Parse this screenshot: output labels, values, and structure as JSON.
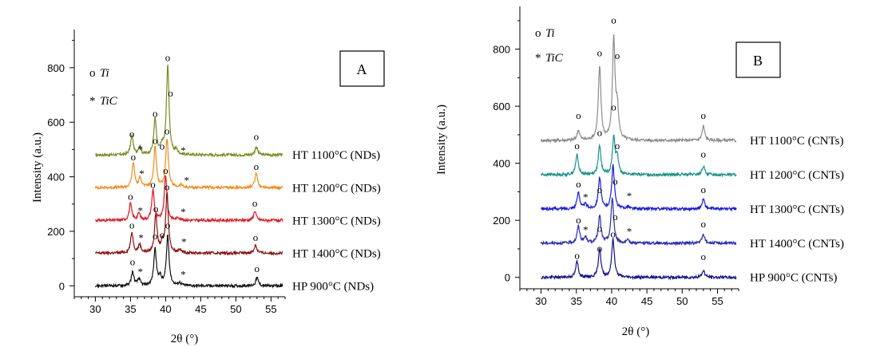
{
  "chart_data": [
    {
      "type": "line",
      "panel_label": "A",
      "xlabel": "2θ (°)",
      "ylabel": "Intensity (a.u.)",
      "xlim": [
        27,
        57
      ],
      "ylim": [
        -40,
        940
      ],
      "xticks": [
        30,
        35,
        40,
        45,
        50,
        55
      ],
      "yticks": [
        0,
        200,
        400,
        600,
        800
      ],
      "legend": [
        {
          "symbol": "o",
          "label": "Ti"
        },
        {
          "symbol": "*",
          "label": "TiC"
        }
      ],
      "series": [
        {
          "name": "HT 1100°C (NDs)",
          "color": "#7a8a1e",
          "baseline": 480,
          "peaks": [
            [
              35.2,
              70
            ],
            [
              36.3,
              30
            ],
            [
              38.5,
              130
            ],
            [
              39.5,
              30
            ],
            [
              40.3,
              330
            ],
            [
              41.5,
              15
            ],
            [
              52.9,
              30
            ]
          ],
          "ti_markers": [
            [
              35.2,
              545
            ],
            [
              38.5,
              620
            ],
            [
              39.5,
              500
            ],
            [
              40.3,
              825
            ],
            [
              40.7,
              695
            ],
            [
              52.9,
              535
            ]
          ],
          "tic_markers": [
            [
              36.4,
              500
            ],
            [
              42.5,
              495
            ]
          ]
        },
        {
          "name": "HT 1200°C (NDs)",
          "color": "#f08c1a",
          "baseline": 360,
          "peaks": [
            [
              35.4,
              90
            ],
            [
              36.4,
              35
            ],
            [
              38.5,
              150
            ],
            [
              40.2,
              180
            ],
            [
              42.2,
              10
            ],
            [
              52.9,
              55
            ]
          ],
          "ti_markers": [
            [
              35.4,
              460
            ],
            [
              38.5,
              520
            ],
            [
              40.2,
              555
            ],
            [
              52.9,
              425
            ]
          ],
          "tic_markers": [
            [
              36.6,
              410
            ],
            [
              43.0,
              385
            ]
          ]
        },
        {
          "name": "HT 1300°C (NDs)",
          "color": "#e4141e",
          "baseline": 240,
          "peaks": [
            [
              35.0,
              60
            ],
            [
              36.2,
              25
            ],
            [
              38.2,
              110
            ],
            [
              40.0,
              165
            ],
            [
              41.8,
              10
            ],
            [
              52.7,
              35
            ]
          ],
          "ti_markers": [
            [
              35.0,
              315
            ],
            [
              38.2,
              360
            ],
            [
              40.0,
              410
            ],
            [
              52.7,
              290
            ]
          ],
          "tic_markers": [
            [
              36.4,
              275
            ],
            [
              42.5,
              270
            ]
          ]
        },
        {
          "name": "HT 1400°C (NDs)",
          "color": "#8a1010",
          "baseline": 120,
          "peaks": [
            [
              35.2,
              75
            ],
            [
              36.3,
              30
            ],
            [
              38.6,
              140
            ],
            [
              39.5,
              30
            ],
            [
              40.2,
              220
            ],
            [
              42.0,
              12
            ],
            [
              52.8,
              30
            ]
          ],
          "ti_markers": [
            [
              35.2,
              210
            ],
            [
              38.6,
              270
            ],
            [
              39.5,
              175
            ],
            [
              40.2,
              350
            ],
            [
              52.8,
              165
            ]
          ],
          "tic_markers": [
            [
              36.5,
              175
            ],
            [
              42.6,
              160
            ]
          ]
        },
        {
          "name": "HP 900°C (NDs)",
          "color": "#111111",
          "baseline": 0,
          "peaks": [
            [
              35.3,
              50
            ],
            [
              36.2,
              25
            ],
            [
              38.5,
              135
            ],
            [
              39.2,
              30
            ],
            [
              40.3,
              185
            ],
            [
              42.0,
              10
            ],
            [
              53.0,
              30
            ]
          ],
          "ti_markers": [
            [
              35.3,
              75
            ],
            [
              38.5,
              170
            ],
            [
              40.3,
              210
            ],
            [
              53.0,
              50
            ]
          ],
          "tic_markers": [
            [
              36.4,
              50
            ],
            [
              42.5,
              40
            ]
          ]
        }
      ]
    },
    {
      "type": "line",
      "panel_label": "B",
      "xlabel": "2θ (°)",
      "ylabel": "Intensity (a.u.)",
      "xlim": [
        27,
        58
      ],
      "ylim": [
        -40,
        950
      ],
      "xticks": [
        30,
        35,
        40,
        45,
        50,
        55
      ],
      "yticks": [
        0,
        200,
        400,
        600,
        800
      ],
      "legend": [
        {
          "symbol": "o",
          "label": "Ti"
        },
        {
          "symbol": "*",
          "label": "TiC"
        }
      ],
      "series": [
        {
          "name": "HT 1100°C (CNTs)",
          "color": "#8c8c8c",
          "baseline": 480,
          "peaks": [
            [
              35.3,
              35
            ],
            [
              38.3,
              255
            ],
            [
              40.3,
              350
            ],
            [
              40.8,
              100
            ],
            [
              53.0,
              50
            ]
          ],
          "ti_markers": [
            [
              35.3,
              555
            ],
            [
              38.3,
              775
            ],
            [
              40.3,
              890
            ],
            [
              40.8,
              765
            ],
            [
              53.0,
              555
            ]
          ],
          "tic_markers": []
        },
        {
          "name": "HT 1200°C (CNTs)",
          "color": "#17928a",
          "baseline": 360,
          "peaks": [
            [
              35.1,
              70
            ],
            [
              38.3,
              100
            ],
            [
              40.3,
              130
            ],
            [
              40.8,
              55
            ],
            [
              53.0,
              30
            ]
          ],
          "ti_markers": [
            [
              35.1,
              450
            ],
            [
              38.3,
              495
            ],
            [
              40.3,
              585
            ],
            [
              40.8,
              450
            ],
            [
              53.0,
              420
            ]
          ],
          "tic_markers": []
        },
        {
          "name": "HT 1300°C (CNTs)",
          "color": "#1a1ae0",
          "baseline": 240,
          "peaks": [
            [
              35.3,
              60
            ],
            [
              36.3,
              15
            ],
            [
              38.3,
              110
            ],
            [
              40.2,
              155
            ],
            [
              42.3,
              8
            ],
            [
              53.0,
              35
            ]
          ],
          "ti_markers": [
            [
              35.3,
              315
            ],
            [
              38.3,
              295
            ],
            [
              40.5,
              325
            ],
            [
              53.0,
              295
            ]
          ],
          "tic_markers": [
            [
              36.3,
              280
            ],
            [
              42.5,
              285
            ]
          ]
        },
        {
          "name": "HT 1400°C (CNTs)",
          "color": "#2a2ab8",
          "baseline": 120,
          "peaks": [
            [
              35.3,
              60
            ],
            [
              36.3,
              20
            ],
            [
              38.3,
              95
            ],
            [
              40.1,
              160
            ],
            [
              42.3,
              8
            ],
            [
              53.0,
              30
            ]
          ],
          "ti_markers": [
            [
              35.3,
              190
            ],
            [
              38.3,
              160
            ],
            [
              40.5,
              200
            ],
            [
              53.0,
              175
            ]
          ],
          "tic_markers": [
            [
              36.3,
              165
            ],
            [
              42.5,
              160
            ]
          ]
        },
        {
          "name": "HP 900°C (CNTs)",
          "color": "#10108a",
          "baseline": 0,
          "peaks": [
            [
              35.1,
              55
            ],
            [
              38.3,
              100
            ],
            [
              40.2,
              135
            ],
            [
              53.0,
              25
            ]
          ],
          "ti_markers": [
            [
              35.1,
              65
            ],
            [
              38.3,
              90
            ],
            [
              40.2,
              140
            ],
            [
              53.0,
              60
            ]
          ],
          "tic_markers": []
        }
      ]
    }
  ]
}
